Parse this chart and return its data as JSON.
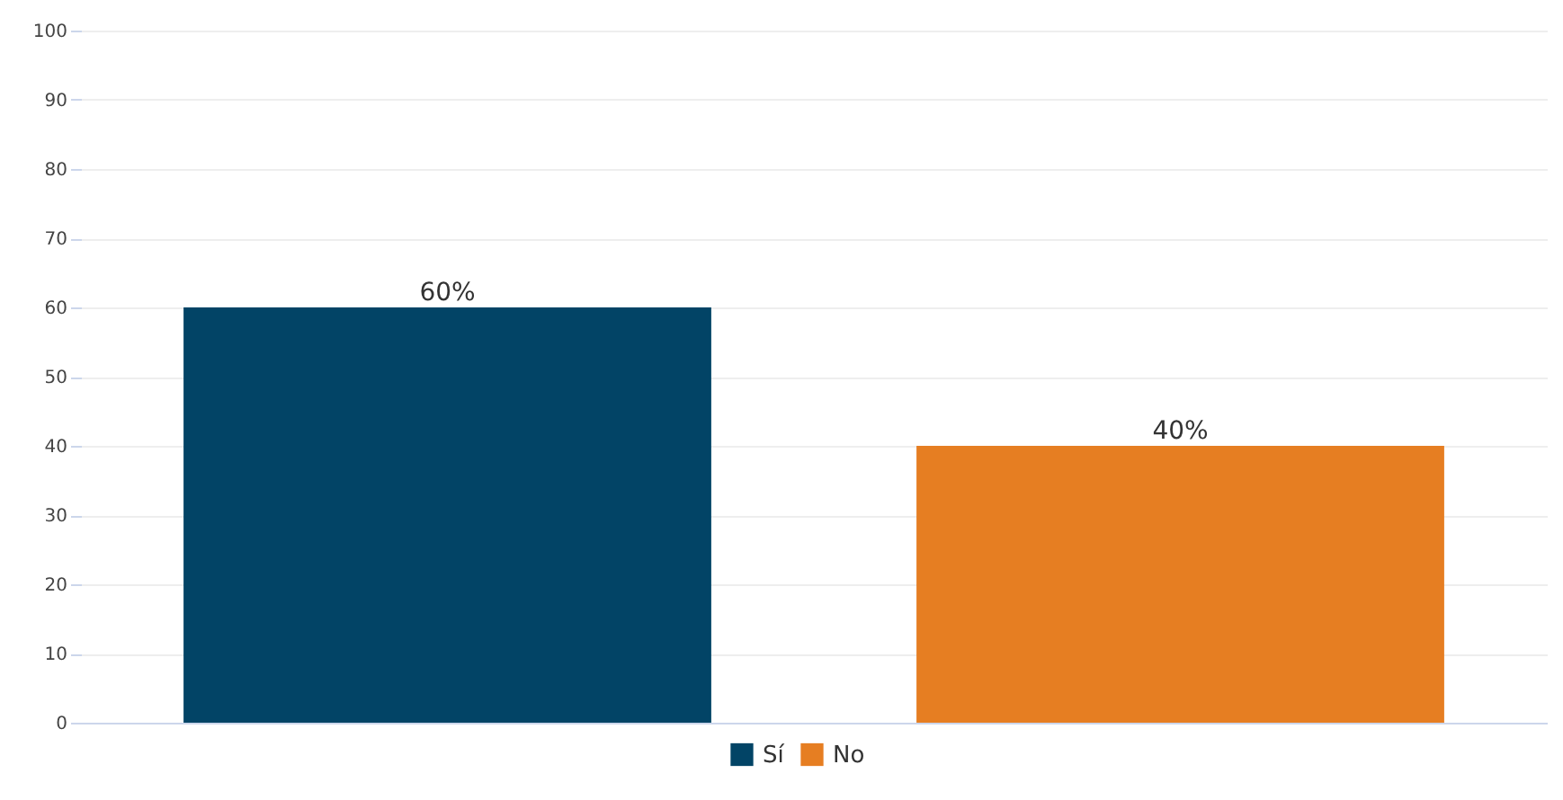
{
  "chart_data": {
    "type": "bar",
    "categories": [
      null,
      null
    ],
    "series": [
      {
        "name": "Sí",
        "color": "#024466",
        "values": [
          60,
          null
        ],
        "value_labels": [
          "60%",
          null
        ]
      },
      {
        "name": "No",
        "color": "#e67e22",
        "values": [
          null,
          40
        ],
        "value_labels": [
          null,
          "40%"
        ]
      }
    ],
    "ylim": [
      0,
      100
    ],
    "yticks": [
      0,
      10,
      20,
      30,
      40,
      50,
      60,
      70,
      80,
      90,
      100
    ],
    "grid": "y",
    "legend": "bottom",
    "tick_labels": "y"
  }
}
